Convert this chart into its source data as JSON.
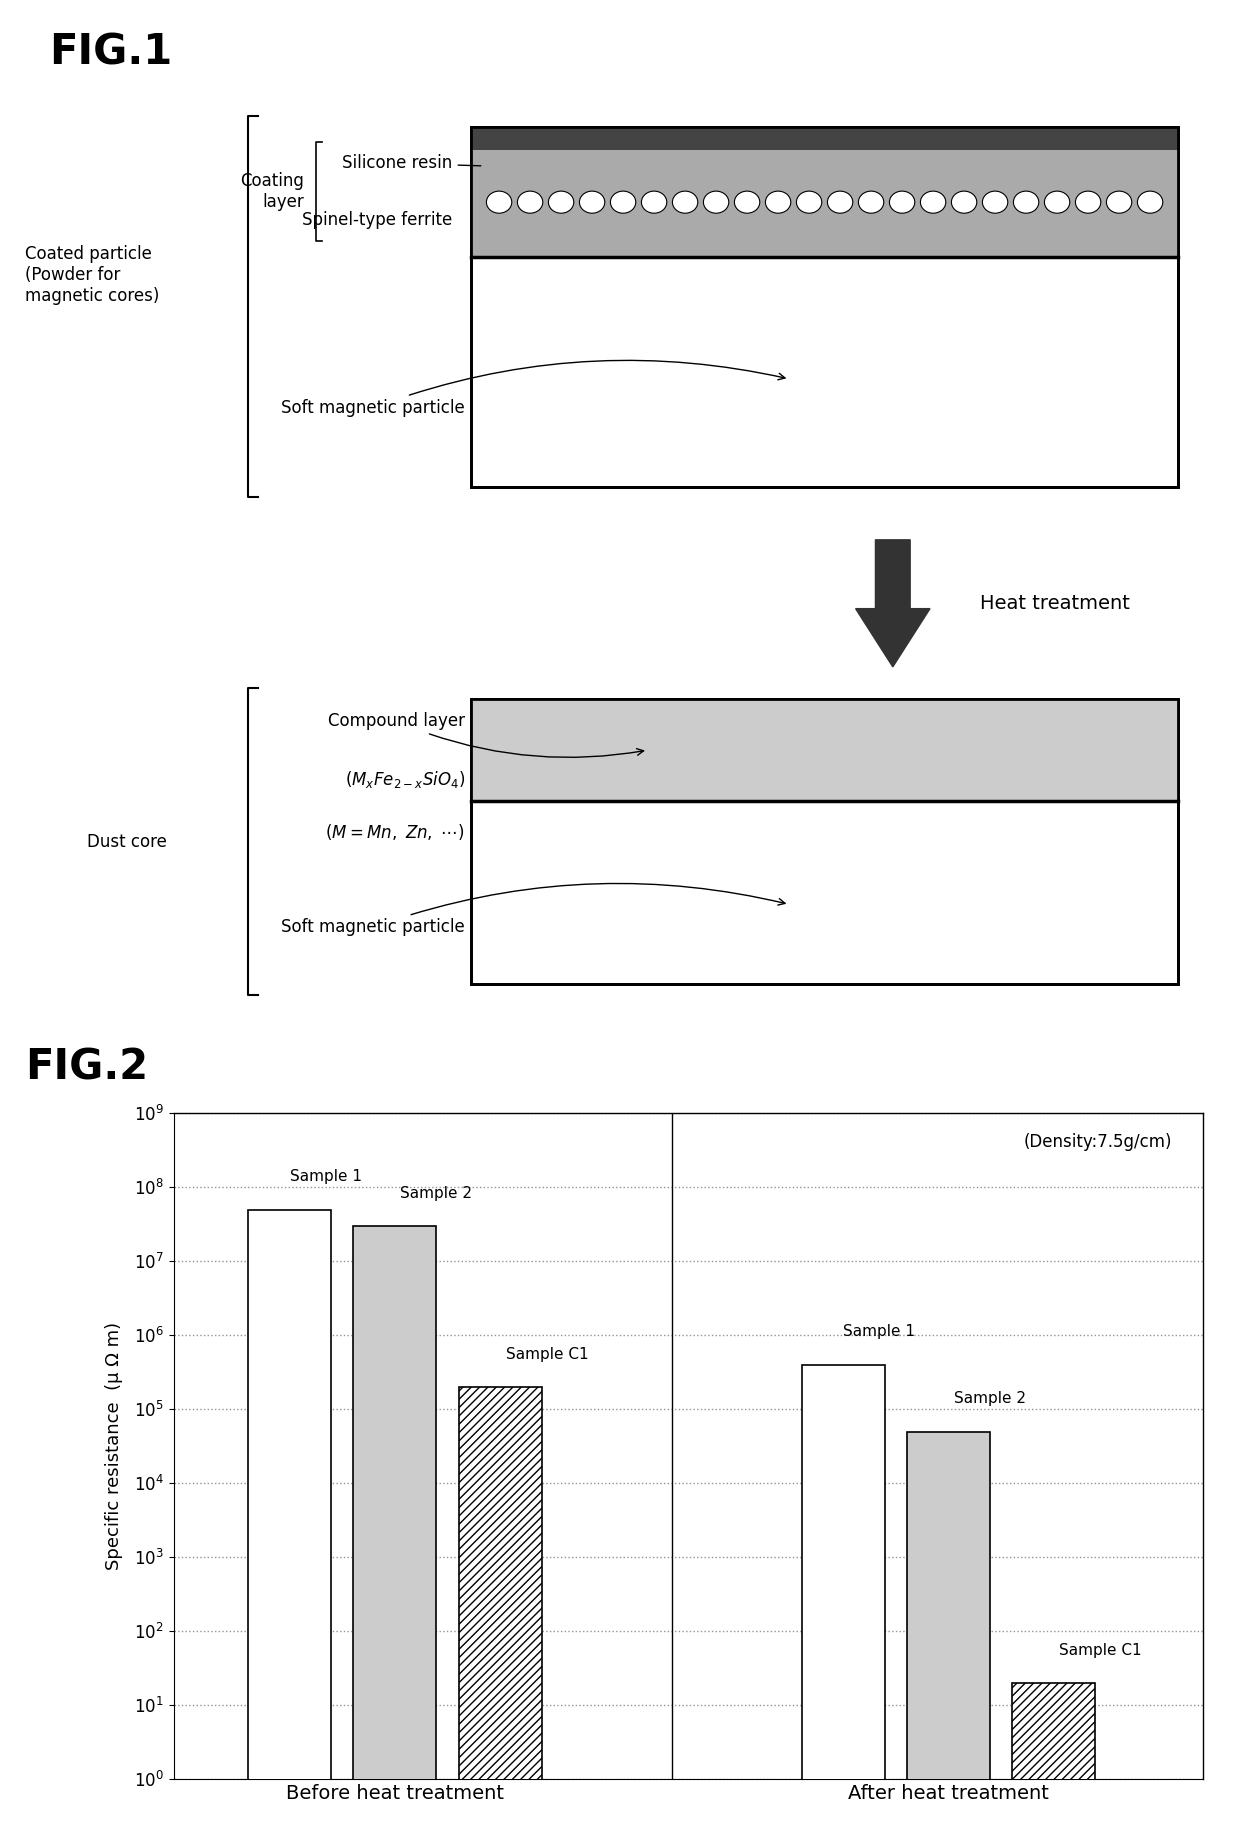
{
  "fig1_title": "FIG.1",
  "fig2_title": "FIG.2",
  "fig2_data": {
    "ylabel": "Specific resistance  (μ Ω m)",
    "density_note": "(Density:7.5g/cm)",
    "groups": [
      "Before heat treatment",
      "After heat treatment"
    ],
    "samples": [
      "Sample 1",
      "Sample 2",
      "Sample C1"
    ],
    "before_values": [
      50000000.0,
      30000000.0,
      200000.0
    ],
    "after_values": [
      400000.0,
      50000.0,
      20
    ],
    "ylim_min": 1,
    "ylim_max": 1000000000.0,
    "bar_colors": [
      "white",
      "#cccccc",
      "white"
    ],
    "bar_hatches": [
      null,
      null,
      "////"
    ],
    "bar_edgecolors": [
      "black",
      "black",
      "black"
    ]
  }
}
